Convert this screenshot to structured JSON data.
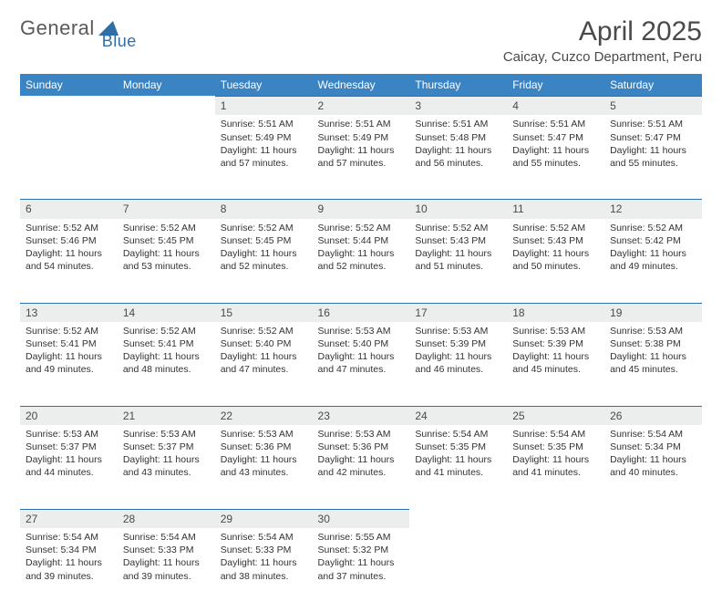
{
  "brand": {
    "part1": "General",
    "part2": "Blue"
  },
  "title": "April 2025",
  "location": "Caicay, Cuzco Department, Peru",
  "colors": {
    "header_bg": "#3b84c4",
    "header_text": "#ffffff",
    "daynum_bg": "#eceded",
    "border": "#2f6fa7",
    "body_text": "#333333",
    "title_text": "#4a4a4a"
  },
  "day_headers": [
    "Sunday",
    "Monday",
    "Tuesday",
    "Wednesday",
    "Thursday",
    "Friday",
    "Saturday"
  ],
  "weeks": [
    [
      null,
      null,
      {
        "n": "1",
        "sr": "Sunrise: 5:51 AM",
        "ss": "Sunset: 5:49 PM",
        "dl": "Daylight: 11 hours and 57 minutes."
      },
      {
        "n": "2",
        "sr": "Sunrise: 5:51 AM",
        "ss": "Sunset: 5:49 PM",
        "dl": "Daylight: 11 hours and 57 minutes."
      },
      {
        "n": "3",
        "sr": "Sunrise: 5:51 AM",
        "ss": "Sunset: 5:48 PM",
        "dl": "Daylight: 11 hours and 56 minutes."
      },
      {
        "n": "4",
        "sr": "Sunrise: 5:51 AM",
        "ss": "Sunset: 5:47 PM",
        "dl": "Daylight: 11 hours and 55 minutes."
      },
      {
        "n": "5",
        "sr": "Sunrise: 5:51 AM",
        "ss": "Sunset: 5:47 PM",
        "dl": "Daylight: 11 hours and 55 minutes."
      }
    ],
    [
      {
        "n": "6",
        "sr": "Sunrise: 5:52 AM",
        "ss": "Sunset: 5:46 PM",
        "dl": "Daylight: 11 hours and 54 minutes."
      },
      {
        "n": "7",
        "sr": "Sunrise: 5:52 AM",
        "ss": "Sunset: 5:45 PM",
        "dl": "Daylight: 11 hours and 53 minutes."
      },
      {
        "n": "8",
        "sr": "Sunrise: 5:52 AM",
        "ss": "Sunset: 5:45 PM",
        "dl": "Daylight: 11 hours and 52 minutes."
      },
      {
        "n": "9",
        "sr": "Sunrise: 5:52 AM",
        "ss": "Sunset: 5:44 PM",
        "dl": "Daylight: 11 hours and 52 minutes."
      },
      {
        "n": "10",
        "sr": "Sunrise: 5:52 AM",
        "ss": "Sunset: 5:43 PM",
        "dl": "Daylight: 11 hours and 51 minutes."
      },
      {
        "n": "11",
        "sr": "Sunrise: 5:52 AM",
        "ss": "Sunset: 5:43 PM",
        "dl": "Daylight: 11 hours and 50 minutes."
      },
      {
        "n": "12",
        "sr": "Sunrise: 5:52 AM",
        "ss": "Sunset: 5:42 PM",
        "dl": "Daylight: 11 hours and 49 minutes."
      }
    ],
    [
      {
        "n": "13",
        "sr": "Sunrise: 5:52 AM",
        "ss": "Sunset: 5:41 PM",
        "dl": "Daylight: 11 hours and 49 minutes."
      },
      {
        "n": "14",
        "sr": "Sunrise: 5:52 AM",
        "ss": "Sunset: 5:41 PM",
        "dl": "Daylight: 11 hours and 48 minutes."
      },
      {
        "n": "15",
        "sr": "Sunrise: 5:52 AM",
        "ss": "Sunset: 5:40 PM",
        "dl": "Daylight: 11 hours and 47 minutes."
      },
      {
        "n": "16",
        "sr": "Sunrise: 5:53 AM",
        "ss": "Sunset: 5:40 PM",
        "dl": "Daylight: 11 hours and 47 minutes."
      },
      {
        "n": "17",
        "sr": "Sunrise: 5:53 AM",
        "ss": "Sunset: 5:39 PM",
        "dl": "Daylight: 11 hours and 46 minutes."
      },
      {
        "n": "18",
        "sr": "Sunrise: 5:53 AM",
        "ss": "Sunset: 5:39 PM",
        "dl": "Daylight: 11 hours and 45 minutes."
      },
      {
        "n": "19",
        "sr": "Sunrise: 5:53 AM",
        "ss": "Sunset: 5:38 PM",
        "dl": "Daylight: 11 hours and 45 minutes."
      }
    ],
    [
      {
        "n": "20",
        "sr": "Sunrise: 5:53 AM",
        "ss": "Sunset: 5:37 PM",
        "dl": "Daylight: 11 hours and 44 minutes."
      },
      {
        "n": "21",
        "sr": "Sunrise: 5:53 AM",
        "ss": "Sunset: 5:37 PM",
        "dl": "Daylight: 11 hours and 43 minutes."
      },
      {
        "n": "22",
        "sr": "Sunrise: 5:53 AM",
        "ss": "Sunset: 5:36 PM",
        "dl": "Daylight: 11 hours and 43 minutes."
      },
      {
        "n": "23",
        "sr": "Sunrise: 5:53 AM",
        "ss": "Sunset: 5:36 PM",
        "dl": "Daylight: 11 hours and 42 minutes."
      },
      {
        "n": "24",
        "sr": "Sunrise: 5:54 AM",
        "ss": "Sunset: 5:35 PM",
        "dl": "Daylight: 11 hours and 41 minutes."
      },
      {
        "n": "25",
        "sr": "Sunrise: 5:54 AM",
        "ss": "Sunset: 5:35 PM",
        "dl": "Daylight: 11 hours and 41 minutes."
      },
      {
        "n": "26",
        "sr": "Sunrise: 5:54 AM",
        "ss": "Sunset: 5:34 PM",
        "dl": "Daylight: 11 hours and 40 minutes."
      }
    ],
    [
      {
        "n": "27",
        "sr": "Sunrise: 5:54 AM",
        "ss": "Sunset: 5:34 PM",
        "dl": "Daylight: 11 hours and 39 minutes."
      },
      {
        "n": "28",
        "sr": "Sunrise: 5:54 AM",
        "ss": "Sunset: 5:33 PM",
        "dl": "Daylight: 11 hours and 39 minutes."
      },
      {
        "n": "29",
        "sr": "Sunrise: 5:54 AM",
        "ss": "Sunset: 5:33 PM",
        "dl": "Daylight: 11 hours and 38 minutes."
      },
      {
        "n": "30",
        "sr": "Sunrise: 5:55 AM",
        "ss": "Sunset: 5:32 PM",
        "dl": "Daylight: 11 hours and 37 minutes."
      },
      null,
      null,
      null
    ]
  ]
}
